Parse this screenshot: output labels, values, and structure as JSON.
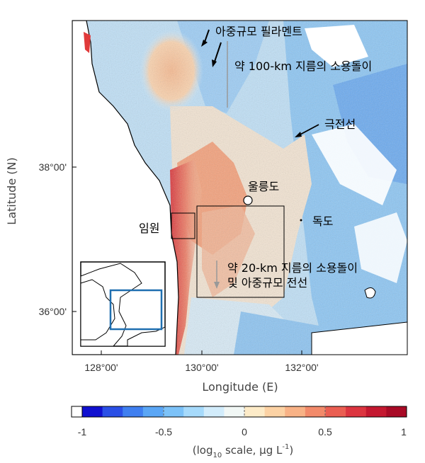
{
  "axes": {
    "xlabel": "Longitude (E)",
    "ylabel": "Latitude (N)",
    "xticks": [
      "128°00'",
      "130°00'",
      "132°00'"
    ],
    "yticks": [
      "38°00'",
      "36°00'"
    ]
  },
  "annotations": {
    "filament": "아중규모 필라멘트",
    "eddy100": "약 100-km 지름의 소용돌이",
    "front": "극전선",
    "ulleungdo": "울릉도",
    "dokdo": "독도",
    "imwon": "임원",
    "eddy20_line1": "약 20-km 지름의 소용돌이",
    "eddy20_line2": "및 아중규모 전선"
  },
  "colorbar": {
    "ticks": [
      "-1",
      "-0.5",
      "0",
      "0.5",
      "1"
    ],
    "unit_prefix": "(log",
    "unit_sub": "10",
    "unit_rest": " scale, µg L",
    "unit_sup": "-1",
    "unit_close": ")",
    "colors": [
      "#1010d0",
      "#2a4fe6",
      "#3f7ff0",
      "#5aa6f5",
      "#7cc2f8",
      "#a6dafb",
      "#d2ecfb",
      "#f1f7f5",
      "#fdebc8",
      "#fcd2a4",
      "#f8b286",
      "#f28a6a",
      "#ea5e52",
      "#dc3540",
      "#c41830",
      "#a80a26"
    ]
  },
  "map": {
    "lon_range": [
      127.5,
      134.2
    ],
    "lat_range": [
      35.5,
      40.0
    ],
    "inset_box": {
      "lon": [
        129.6,
        131.5
      ],
      "lat": [
        36.2,
        37.45
      ]
    }
  }
}
